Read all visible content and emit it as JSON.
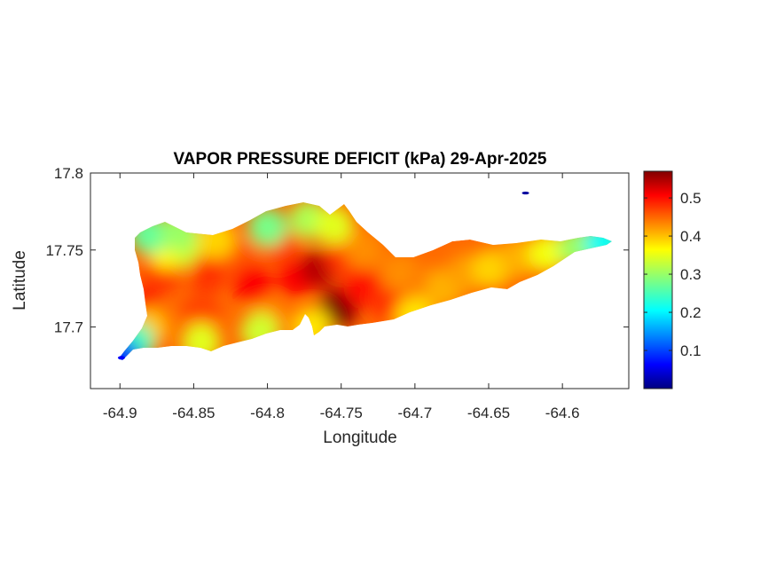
{
  "chart_data": {
    "type": "heatmap",
    "title": "VAPOR PRESSURE DEFICIT (kPa) 29-Apr-2025",
    "xlabel": "Longitude",
    "ylabel": "Latitude",
    "xlim": [
      -64.92,
      -64.555
    ],
    "ylim": [
      17.66,
      17.8
    ],
    "x_ticks": [
      -64.9,
      -64.85,
      -64.8,
      -64.75,
      -64.7,
      -64.65,
      -64.6
    ],
    "x_tick_labels": [
      "-64.9",
      "-64.85",
      "-64.8",
      "-64.75",
      "-64.7",
      "-64.65",
      "-64.6"
    ],
    "y_ticks": [
      17.7,
      17.75,
      17.8
    ],
    "y_tick_labels": [
      "17.7",
      "17.75",
      "17.8"
    ],
    "colorbar": {
      "colormap": "jet",
      "range": [
        0.0,
        0.57
      ],
      "ticks": [
        0.1,
        0.2,
        0.3,
        0.4,
        0.5
      ],
      "tick_labels": [
        "0.1",
        "0.2",
        "0.3",
        "0.4",
        "0.5"
      ]
    },
    "field_samples": [
      {
        "lon": -64.885,
        "lat": 17.712,
        "value": 0.5
      },
      {
        "lon": -64.872,
        "lat": 17.735,
        "value": 0.47
      },
      {
        "lon": -64.868,
        "lat": 17.75,
        "value": 0.36
      },
      {
        "lon": -64.85,
        "lat": 17.749,
        "value": 0.33
      },
      {
        "lon": -64.84,
        "lat": 17.735,
        "value": 0.47
      },
      {
        "lon": -64.845,
        "lat": 17.71,
        "value": 0.46
      },
      {
        "lon": -64.82,
        "lat": 17.745,
        "value": 0.45
      },
      {
        "lon": -64.81,
        "lat": 17.728,
        "value": 0.5
      },
      {
        "lon": -64.8,
        "lat": 17.705,
        "value": 0.42
      },
      {
        "lon": -64.79,
        "lat": 17.752,
        "value": 0.46
      },
      {
        "lon": -64.78,
        "lat": 17.732,
        "value": 0.5
      },
      {
        "lon": -64.765,
        "lat": 17.738,
        "value": 0.54
      },
      {
        "lon": -64.752,
        "lat": 17.712,
        "value": 0.57
      },
      {
        "lon": -64.748,
        "lat": 17.745,
        "value": 0.47
      },
      {
        "lon": -64.735,
        "lat": 17.725,
        "value": 0.49
      },
      {
        "lon": -64.718,
        "lat": 17.717,
        "value": 0.47
      },
      {
        "lon": -64.71,
        "lat": 17.735,
        "value": 0.42
      },
      {
        "lon": -64.69,
        "lat": 17.728,
        "value": 0.43
      },
      {
        "lon": -64.68,
        "lat": 17.725,
        "value": 0.4
      },
      {
        "lon": -64.665,
        "lat": 17.735,
        "value": 0.41
      },
      {
        "lon": -64.648,
        "lat": 17.738,
        "value": 0.38
      },
      {
        "lon": -64.63,
        "lat": 17.745,
        "value": 0.4
      },
      {
        "lon": -64.61,
        "lat": 17.748,
        "value": 0.35
      },
      {
        "lon": -64.59,
        "lat": 17.752,
        "value": 0.3
      },
      {
        "lon": -64.572,
        "lat": 17.755,
        "value": 0.22
      },
      {
        "lon": -64.8,
        "lat": 17.765,
        "value": 0.28
      },
      {
        "lon": -64.772,
        "lat": 17.77,
        "value": 0.31
      },
      {
        "lon": -64.88,
        "lat": 17.7,
        "value": 0.39
      },
      {
        "lon": -64.89,
        "lat": 17.69,
        "value": 0.25
      },
      {
        "lon": -64.9,
        "lat": 17.68,
        "value": 0.1
      },
      {
        "lon": -64.845,
        "lat": 17.69,
        "value": 0.34
      },
      {
        "lon": -64.805,
        "lat": 17.697,
        "value": 0.33
      },
      {
        "lon": -64.77,
        "lat": 17.7,
        "value": 0.37
      },
      {
        "lon": -64.7,
        "lat": 17.707,
        "value": 0.37
      },
      {
        "lon": -64.88,
        "lat": 17.76,
        "value": 0.27
      },
      {
        "lon": -64.86,
        "lat": 17.762,
        "value": 0.3
      },
      {
        "lon": -64.835,
        "lat": 17.757,
        "value": 0.38
      },
      {
        "lon": -64.755,
        "lat": 17.766,
        "value": 0.34
      },
      {
        "lon": -64.735,
        "lat": 17.75,
        "value": 0.42
      },
      {
        "lon": -64.625,
        "lat": 17.787,
        "value": 0.02
      }
    ]
  }
}
